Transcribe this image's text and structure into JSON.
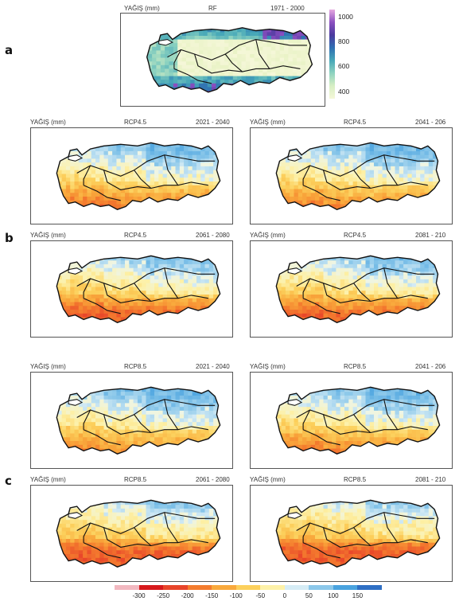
{
  "panel_letters": {
    "a": "a",
    "b": "b",
    "c": "c"
  },
  "unit_label": "YAĞIŞ (mm)",
  "reference_map": {
    "scenario": "RF",
    "period": "1971 - 2000",
    "colorbar": {
      "ticks": [
        "1000",
        "800",
        "600",
        "400"
      ],
      "colors": [
        "#e6a8e0",
        "#8b4fc0",
        "#4a3a9e",
        "#2f6fb2",
        "#47a8b8",
        "#8fd3c0",
        "#d8efc4",
        "#f5f7d8"
      ]
    }
  },
  "scenario_maps": [
    {
      "id": "b1",
      "scenario": "RCP4.5",
      "period": "2021 - 2040",
      "dryness": 0.25
    },
    {
      "id": "b2",
      "scenario": "RCP4.5",
      "period": "2041 - 206",
      "dryness": 0.2
    },
    {
      "id": "b3",
      "scenario": "RCP4.5",
      "period": "2061 - 2080",
      "dryness": 0.5
    },
    {
      "id": "b4",
      "scenario": "RCP4.5",
      "period": "2081 - 210",
      "dryness": 0.45
    },
    {
      "id": "c1",
      "scenario": "RCP8.5",
      "period": "2021 - 2040",
      "dryness": 0.15
    },
    {
      "id": "c2",
      "scenario": "RCP8.5",
      "period": "2041 - 206",
      "dryness": 0.22
    },
    {
      "id": "c3",
      "scenario": "RCP8.5",
      "period": "2061 - 2080",
      "dryness": 0.7
    },
    {
      "id": "c4",
      "scenario": "RCP8.5",
      "period": "2081 - 210",
      "dryness": 0.8
    }
  ],
  "change_legend": {
    "ticks": [
      "-300",
      "-250",
      "-200",
      "-150",
      "-100",
      "-50",
      "0",
      "50",
      "100",
      "150"
    ],
    "colors": [
      "#f2b8c0",
      "#d7191c",
      "#e8452a",
      "#f47c2e",
      "#f9a93c",
      "#fcd05c",
      "#fdf1a8",
      "#d6ecf5",
      "#8cc8ea",
      "#4aa3df",
      "#2f6fc4"
    ]
  }
}
